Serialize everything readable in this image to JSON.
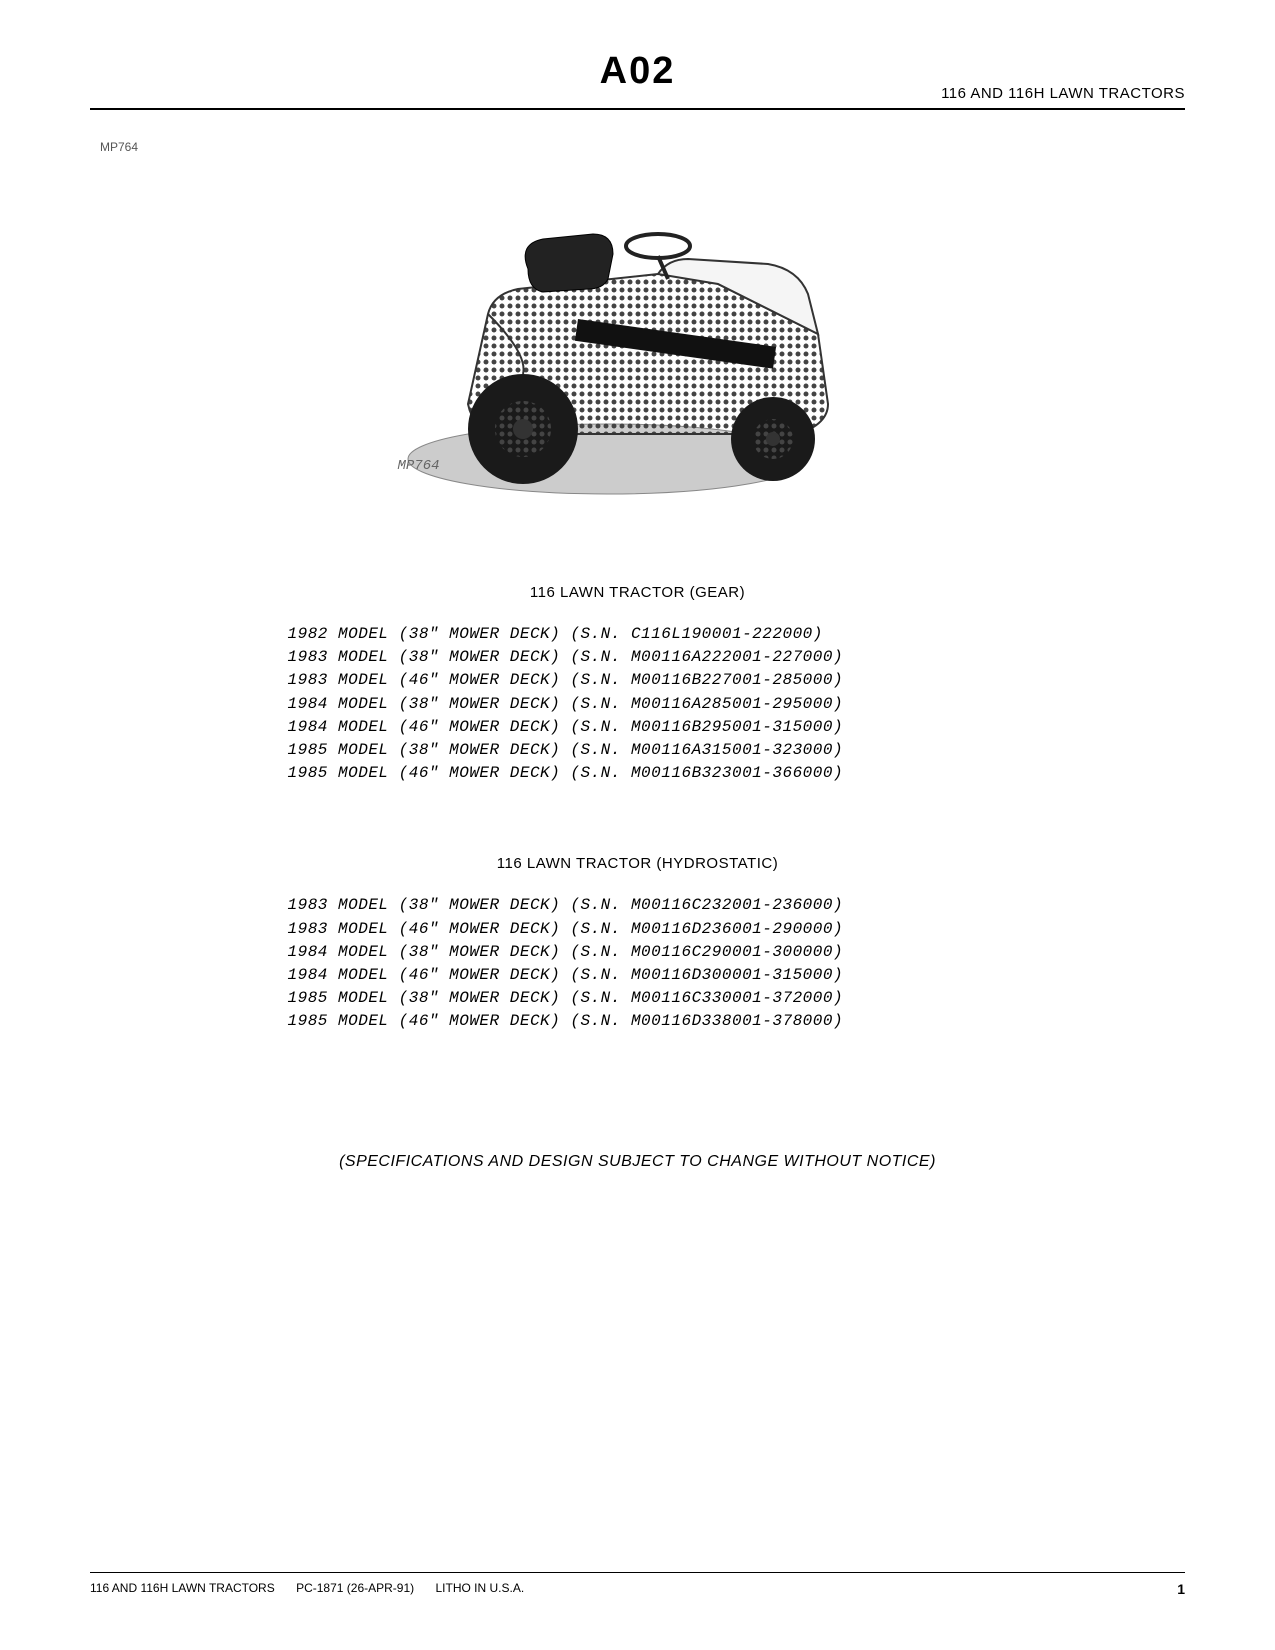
{
  "header": {
    "section_code": "A02",
    "product_line": "116 AND 116H LAWN TRACTORS"
  },
  "figure": {
    "code_top": "MP764",
    "code_bottom": "MP764"
  },
  "sections": [
    {
      "title": "116 LAWN TRACTOR (GEAR)",
      "models": [
        {
          "year": "1982",
          "deck": "38\"",
          "sn": "C116L190001-222000"
        },
        {
          "year": "1983",
          "deck": "38\"",
          "sn": "M00116A222001-227000"
        },
        {
          "year": "1983",
          "deck": "46\"",
          "sn": "M00116B227001-285000"
        },
        {
          "year": "1984",
          "deck": "38\"",
          "sn": "M00116A285001-295000"
        },
        {
          "year": "1984",
          "deck": "46\"",
          "sn": "M00116B295001-315000"
        },
        {
          "year": "1985",
          "deck": "38\"",
          "sn": "M00116A315001-323000"
        },
        {
          "year": "1985",
          "deck": "46\"",
          "sn": "M00116B323001-366000"
        }
      ]
    },
    {
      "title": "116 LAWN TRACTOR (HYDROSTATIC)",
      "models": [
        {
          "year": "1983",
          "deck": "38\"",
          "sn": "M00116C232001-236000"
        },
        {
          "year": "1983",
          "deck": "46\"",
          "sn": "M00116D236001-290000"
        },
        {
          "year": "1984",
          "deck": "38\"",
          "sn": "M00116C290001-300000"
        },
        {
          "year": "1984",
          "deck": "46\"",
          "sn": "M00116D300001-315000"
        },
        {
          "year": "1985",
          "deck": "38\"",
          "sn": "M00116C330001-372000"
        },
        {
          "year": "1985",
          "deck": "46\"",
          "sn": "M00116D338001-378000"
        }
      ]
    }
  ],
  "notice": "(SPECIFICATIONS AND DESIGN SUBJECT TO CHANGE WITHOUT NOTICE)",
  "footer": {
    "product": "116 AND 116H LAWN TRACTORS",
    "doc_number": "PC-1871 (26-APR-91)",
    "print_info": "LITHO IN U.S.A.",
    "page_number": "1"
  },
  "style": {
    "text_color": "#000000",
    "bg_color": "#ffffff",
    "mono_font": "Courier New",
    "sans_font": "Arial"
  }
}
